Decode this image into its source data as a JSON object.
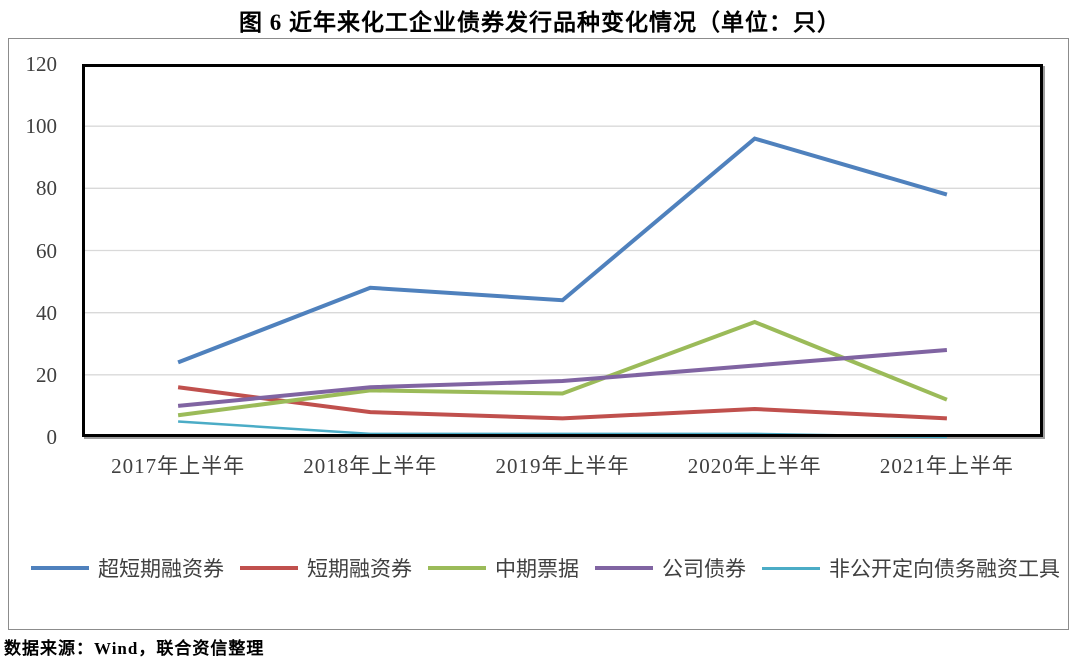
{
  "title": "图 6  近年来化工企业债券发行品种变化情况（单位：只）",
  "source_note": "数据来源：Wind，联合资信整理",
  "colors": {
    "grid": "#d9d9d9",
    "plot_border": "#000000",
    "frame_border": "#8c8c8c",
    "label_text": "#404040"
  },
  "chart_data": {
    "type": "line",
    "title": "近年来化工企业债券发行品种变化情况",
    "unit": "只",
    "categories": [
      "2017年上半年",
      "2018年上半年",
      "2019年上半年",
      "2020年上半年",
      "2021年上半年"
    ],
    "series": [
      {
        "name": "超短期融资券",
        "color": "#4F81BD",
        "stroke_width": 4,
        "values": [
          24,
          48,
          44,
          96,
          78
        ]
      },
      {
        "name": "短期融资券",
        "color": "#C0504D",
        "stroke_width": 4,
        "values": [
          16,
          8,
          6,
          9,
          6
        ]
      },
      {
        "name": "中期票据",
        "color": "#9BBB59",
        "stroke_width": 4,
        "values": [
          7,
          15,
          14,
          37,
          12
        ]
      },
      {
        "name": "公司债券",
        "color": "#8064A2",
        "stroke_width": 4,
        "values": [
          10,
          16,
          18,
          23,
          28
        ]
      },
      {
        "name": "非公开定向债务融资工具",
        "color": "#4BACC6",
        "stroke_width": 2.5,
        "values": [
          5,
          1,
          1,
          1,
          0
        ]
      }
    ],
    "ylim": [
      0,
      120
    ],
    "yticks": [
      0,
      20,
      40,
      60,
      80,
      100,
      120
    ],
    "grid": true,
    "legend_position": "bottom"
  }
}
